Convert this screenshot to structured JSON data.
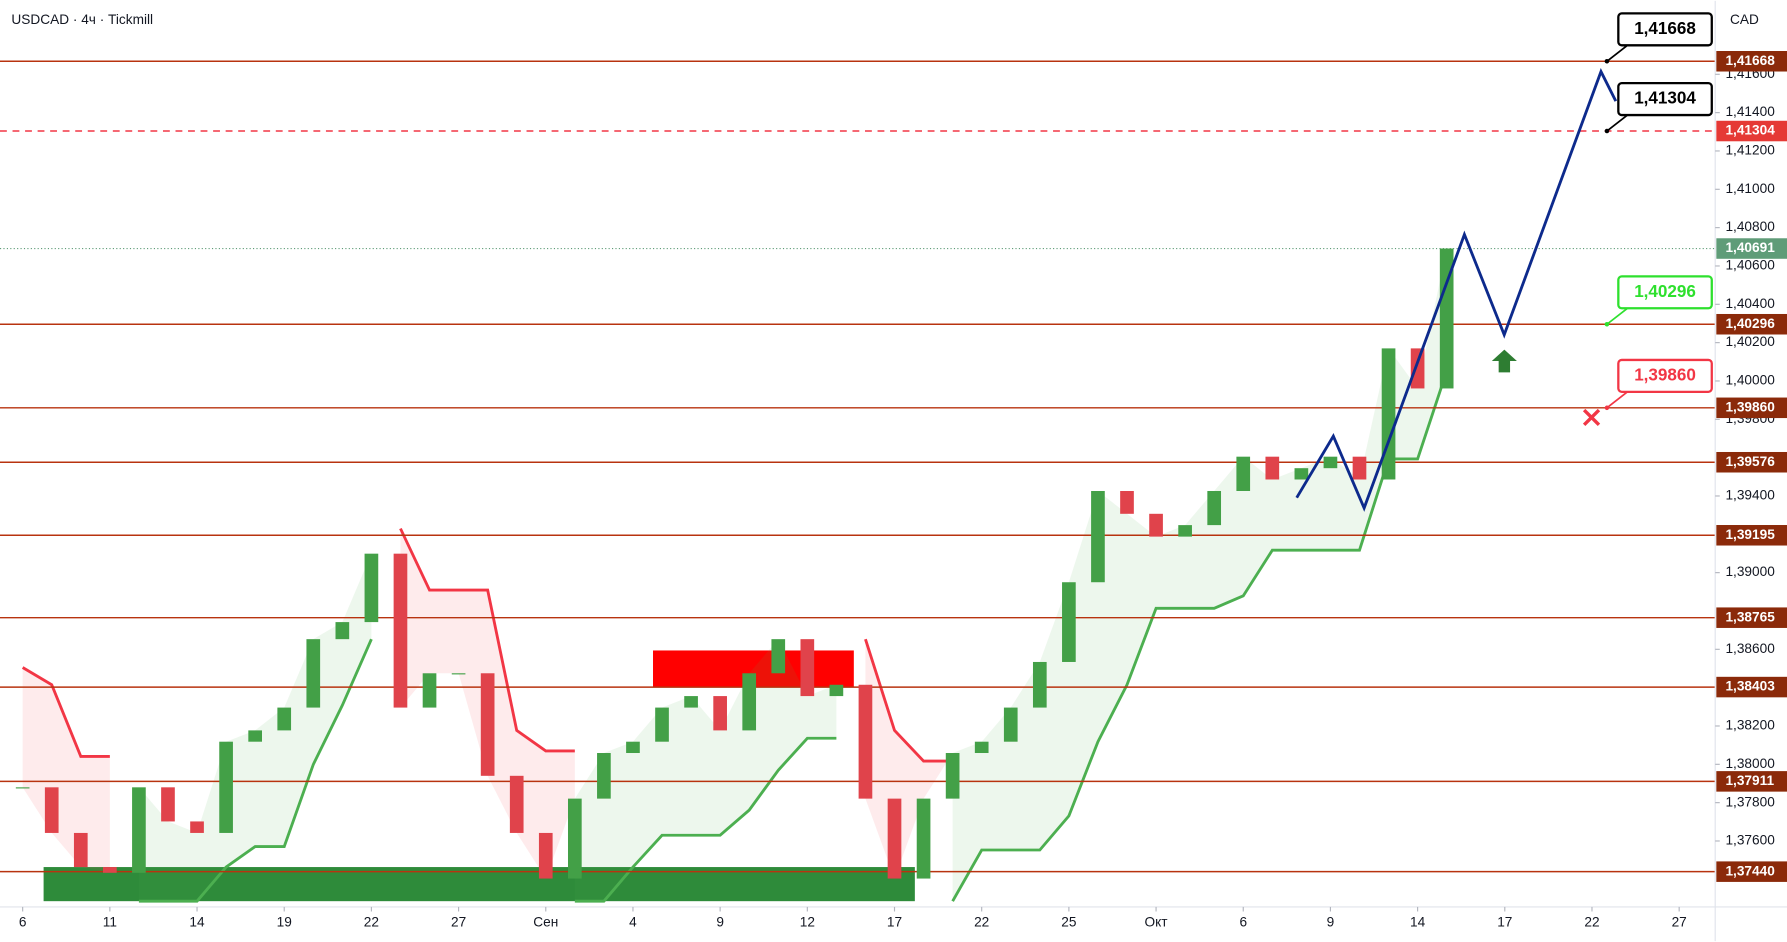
{
  "header": "USDCAD · 4ч · Tickmill",
  "currency": "CAD",
  "chart_data": {
    "type": "candlestick",
    "xlim": [
      -0.78,
      58.24
    ],
    "ylim": [
      1.37256,
      1.41983
    ],
    "grid": false,
    "xticks": [
      {
        "value": 0,
        "label": "6"
      },
      {
        "value": 3,
        "label": "11"
      },
      {
        "value": 6,
        "label": "14"
      },
      {
        "value": 9,
        "label": "19"
      },
      {
        "value": 12,
        "label": "22"
      },
      {
        "value": 15,
        "label": "27"
      },
      {
        "value": 18,
        "label": "Сен"
      },
      {
        "value": 21,
        "label": "4"
      },
      {
        "value": 24,
        "label": "9"
      },
      {
        "value": 27,
        "label": "12"
      },
      {
        "value": 30,
        "label": "17"
      },
      {
        "value": 33,
        "label": "22"
      },
      {
        "value": 36,
        "label": "25"
      },
      {
        "value": 39,
        "label": "Окт"
      },
      {
        "value": 42,
        "label": "6"
      },
      {
        "value": 45,
        "label": "9"
      },
      {
        "value": 48,
        "label": "14"
      },
      {
        "value": 51,
        "label": "17"
      },
      {
        "value": 54,
        "label": "22"
      },
      {
        "value": 57,
        "label": "27"
      }
    ],
    "yticks": [
      {
        "value": 1.376,
        "label": "1,37600"
      },
      {
        "value": 1.378,
        "label": "1,37800"
      },
      {
        "value": 1.38,
        "label": "1,38000"
      },
      {
        "value": 1.382,
        "label": "1,38200"
      },
      {
        "value": 1.386,
        "label": "1,38600"
      },
      {
        "value": 1.39,
        "label": "1,39000"
      },
      {
        "value": 1.394,
        "label": "1,39400"
      },
      {
        "value": 1.398,
        "label": "1,39800"
      },
      {
        "value": 1.4,
        "label": "1,40000"
      },
      {
        "value": 1.402,
        "label": "1,40200"
      },
      {
        "value": 1.404,
        "label": "1,40400"
      },
      {
        "value": 1.406,
        "label": "1,40600"
      },
      {
        "value": 1.408,
        "label": "1,40800"
      },
      {
        "value": 1.41,
        "label": "1,41000"
      },
      {
        "value": 1.412,
        "label": "1,41200"
      },
      {
        "value": 1.414,
        "label": "1,41400"
      },
      {
        "value": 1.416,
        "label": "1,41600"
      }
    ],
    "up_color": "#43a047",
    "down_color": "#e0434b",
    "values": [
      1.3788,
      1.37642,
      1.37464,
      1.37434,
      1.3788,
      1.37702,
      1.37642,
      1.38118,
      1.38177,
      1.38296,
      1.38653,
      1.38742,
      1.39099,
      1.38296,
      1.38475,
      1.38475,
      1.3794,
      1.37642,
      1.37404,
      1.37821,
      1.38059,
      1.38118,
      1.38296,
      1.38356,
      1.38177,
      1.38475,
      1.38653,
      1.38356,
      1.38415,
      1.37821,
      1.37404,
      1.37821,
      1.38059,
      1.38118,
      1.38296,
      1.38534,
      1.3895,
      1.39426,
      1.39307,
      1.39188,
      1.39248,
      1.39426,
      1.39605,
      1.39486,
      1.39545,
      1.39605,
      1.39486,
      1.4017,
      1.39961,
      1.40691
    ],
    "series": [
      {
        "color": "#f23645",
        "values": [
          1.38505,
          1.38415,
          1.38041,
          1.38041,
          null,
          null,
          null,
          null,
          null,
          null,
          null,
          null,
          null,
          1.3923,
          1.38909,
          1.38909,
          1.38909,
          1.38177,
          1.3807,
          1.3807,
          null,
          null,
          null,
          null,
          null,
          null,
          null,
          null,
          null,
          1.38653,
          1.38177,
          1.38017,
          1.38017,
          null,
          null,
          null,
          null,
          null,
          null,
          null,
          null,
          null,
          null,
          null,
          null,
          null,
          null,
          null,
          null,
          null
        ]
      },
      {
        "color": "#4caf50",
        "values": [
          null,
          null,
          null,
          null,
          1.37286,
          1.37286,
          1.37286,
          1.37464,
          1.37571,
          1.37571,
          1.37999,
          1.38308,
          1.38653,
          null,
          null,
          null,
          null,
          null,
          null,
          1.37286,
          1.37286,
          1.37464,
          1.3763,
          1.3763,
          1.3763,
          1.37761,
          1.37969,
          1.38136,
          1.38136,
          null,
          null,
          null,
          1.37286,
          1.37553,
          1.37553,
          1.37553,
          1.37731,
          1.38118,
          1.38415,
          1.38814,
          1.38814,
          1.38814,
          1.38879,
          1.39117,
          1.39117,
          1.39117,
          1.39117,
          1.39593,
          1.39593,
          1.40051
        ]
      }
    ],
    "zones": [
      {
        "color": "#ff0000",
        "x": [
          21.69,
          28.6
        ],
        "y": [
          1.38403,
          1.38594
        ]
      },
      {
        "color": "#2e8b3a",
        "x": [
          0.72,
          30.7
        ],
        "y": [
          1.37286,
          1.37464
        ]
      }
    ],
    "forecast": {
      "color": "#0d2a8c",
      "x": [
        43.84,
        45.1,
        46.16,
        49.61,
        50.98,
        54.31,
        54.82
      ],
      "y": [
        1.39391,
        1.39712,
        1.39337,
        1.40764,
        1.40241,
        1.41614,
        1.4146
      ]
    },
    "levels": [
      {
        "value": 1.41668,
        "label": "1,41668",
        "color": "#b8330f",
        "badge": "#8b2a0a",
        "dashed": false
      },
      {
        "value": 1.41304,
        "label": "1,41304",
        "color": "#f23645",
        "badge": "#e53935",
        "dashed": true
      },
      {
        "value": 1.40296,
        "label": "1,40296",
        "color": "#b8330f",
        "badge": "#8b2a0a",
        "dashed": false
      },
      {
        "value": 1.3986,
        "label": "1,39860",
        "color": "#b8330f",
        "badge": "#8b2a0a",
        "dashed": false
      },
      {
        "value": 1.39576,
        "label": "1,39576",
        "color": "#b8330f",
        "badge": "#8b2a0a",
        "dashed": false
      },
      {
        "value": 1.39195,
        "label": "1,39195",
        "color": "#b8330f",
        "badge": "#8b2a0a",
        "dashed": false
      },
      {
        "value": 1.38765,
        "label": "1,38765",
        "color": "#b8330f",
        "badge": "#8b2a0a",
        "dashed": false
      },
      {
        "value": 1.38403,
        "label": "1,38403",
        "color": "#b8330f",
        "badge": "#8b2a0a",
        "dashed": false
      },
      {
        "value": 1.37911,
        "label": "1,37911",
        "color": "#b8330f",
        "badge": "#8b2a0a",
        "dashed": false
      },
      {
        "value": 1.3744,
        "label": "1,37440",
        "color": "#b8330f",
        "badge": "#8b2a0a",
        "dashed": false
      }
    ],
    "last_price": {
      "value": 1.40691,
      "label": "1,40691",
      "color": "#5f9c78"
    },
    "annotations": [
      {
        "text": "1,41668",
        "value": 1.41668,
        "color": "#000000"
      },
      {
        "text": "1,41304",
        "value": 1.41304,
        "color": "#000000"
      },
      {
        "text": "1,40296",
        "value": 1.40296,
        "color": "#2ee02e"
      },
      {
        "text": "1,39860",
        "value": 1.3986,
        "color": "#f23645"
      }
    ]
  }
}
